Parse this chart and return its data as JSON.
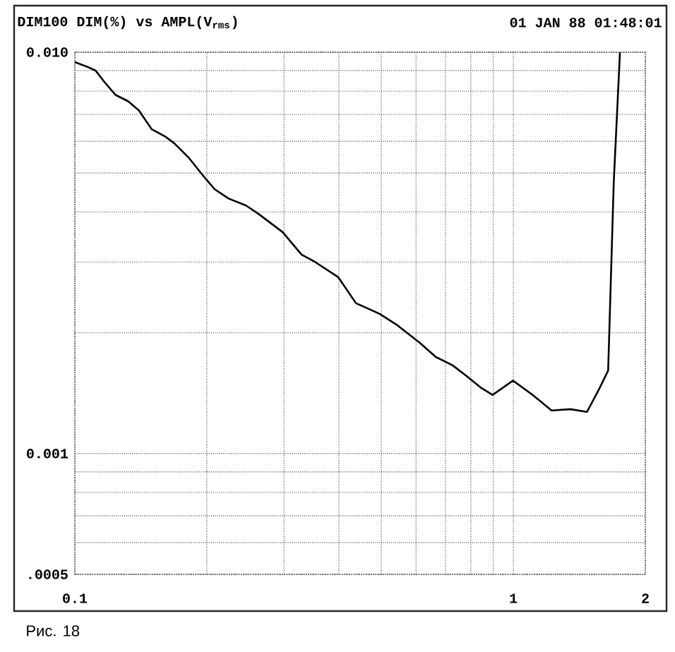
{
  "chart_data": {
    "type": "line",
    "title": "DIM100 DIM(%) vs AMPL(V$_{rms}$)",
    "subtitle": "01 JAN 88 01:48:01",
    "annotations": [
      "Рис. 18"
    ],
    "log": "xy",
    "xlim": [
      0.1,
      2
    ],
    "ylim": [
      0.0005,
      0.01
    ],
    "xticks": [
      0.1,
      {
        "value": 0.2,
        "label": null
      },
      {
        "value": 0.3,
        "label": null
      },
      {
        "value": 0.4,
        "label": null
      },
      {
        "value": 0.5,
        "label": null
      },
      {
        "value": 0.6,
        "label": null
      },
      {
        "value": 0.7,
        "label": null
      },
      {
        "value": 0.8,
        "label": null
      },
      {
        "value": 0.9,
        "label": null
      },
      1,
      2
    ],
    "yticks": [
      {
        "value": 0.0005,
        "label": ".0005"
      },
      {
        "value": 0.0006,
        "label": null
      },
      {
        "value": 0.0007,
        "label": null
      },
      {
        "value": 0.0008,
        "label": null
      },
      {
        "value": 0.0009,
        "label": null
      },
      0.001,
      {
        "value": 0.002,
        "label": null
      },
      {
        "value": 0.003,
        "label": null
      },
      {
        "value": 0.004,
        "label": null
      },
      {
        "value": 0.005,
        "label": null
      },
      {
        "value": 0.006,
        "label": null
      },
      {
        "value": 0.007,
        "label": null
      },
      {
        "value": 0.008,
        "label": null
      },
      {
        "value": 0.009,
        "label": null
      },
      {
        "value": 0.01,
        "label": "0.010"
      }
    ],
    "grid": true,
    "line_style": "solid",
    "series": [
      {
        "color": "#000000",
        "x": [
          0.1,
          0.1067,
          0.1115,
          0.1169,
          0.1238,
          0.1323,
          0.14,
          0.1497,
          0.1606,
          0.1686,
          0.1816,
          0.1966,
          0.2082,
          0.2242,
          0.2457,
          0.262,
          0.298,
          0.3289,
          0.35,
          0.399,
          0.4375,
          0.4949,
          0.54,
          0.611,
          0.666,
          0.7265,
          0.7826,
          0.843,
          0.8965,
          0.998,
          1.107,
          1.222,
          1.349,
          1.472,
          1.565,
          1.645,
          1.657,
          1.694,
          1.75
        ],
        "values": [
          0.00945,
          0.0092,
          0.009,
          0.00842,
          0.00783,
          0.00755,
          0.00716,
          0.00643,
          0.00617,
          0.00593,
          0.00547,
          0.00491,
          0.00456,
          0.00432,
          0.00415,
          0.00396,
          0.00356,
          0.00313,
          0.00302,
          0.00275,
          0.00237,
          0.00223,
          0.0021,
          0.00189,
          0.00174,
          0.00166,
          0.00156,
          0.00146,
          0.0014,
          0.00152,
          0.0014,
          0.00128,
          0.00129,
          0.00127,
          0.00144,
          0.00161,
          0.0021,
          0.00472,
          0.00995
        ]
      }
    ]
  }
}
